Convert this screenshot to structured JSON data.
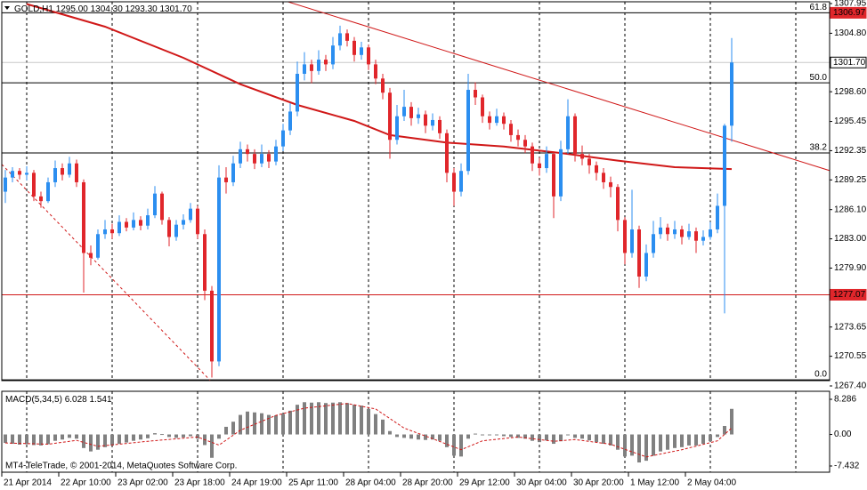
{
  "chart_data": {
    "type": "candlestick",
    "symbol": "GOLD,H1",
    "header_values": [
      "1295.00",
      "1304.30",
      "1293.30",
      "1301.70"
    ],
    "up_color": "#2b8ef0",
    "down_color": "#e0262b",
    "ylim": [
      1267.4,
      1307.95
    ],
    "yticks": [
      1307.95,
      {
        "value": 1304.8,
        "label": "1304.80"
      },
      {
        "value": 1298.6,
        "label": "1298.60"
      },
      1295.45,
      1292.35,
      1289.25,
      {
        "value": 1286.1,
        "label": "1286.10"
      },
      {
        "value": 1283,
        "label": "1283.00"
      },
      {
        "value": 1279.9,
        "label": "1279.90"
      },
      1273.65,
      1270.55,
      {
        "value": 1267.4,
        "label": "1267.40"
      }
    ],
    "xticks": [
      {
        "value": 0,
        "label": "21 Apr 2014"
      },
      {
        "value": 8,
        "label": "22 Apr 10:00"
      },
      {
        "value": 16,
        "label": "23 Apr 02:00"
      },
      {
        "value": 24,
        "label": "23 Apr 18:00"
      },
      {
        "value": 32,
        "label": "24 Apr 19:00"
      },
      {
        "value": 40,
        "label": "25 Apr 11:00"
      },
      {
        "value": 48,
        "label": "28 Apr 04:00"
      },
      {
        "value": 56,
        "label": "28 Apr 20:00"
      },
      {
        "value": 64,
        "label": "29 Apr 12:00"
      },
      {
        "value": 72,
        "label": "30 Apr 04:00"
      },
      {
        "value": 80,
        "label": "30 Apr 20:00"
      },
      {
        "value": 88,
        "label": "1 May 12:00"
      },
      {
        "value": 96,
        "label": "2 May 04:00"
      }
    ],
    "xgrid": [
      3,
      15,
      27,
      39,
      51,
      63,
      75,
      87,
      99,
      111
    ],
    "candles": [
      [
        1288.0,
        1290.3,
        1286.8,
        1289.5
      ],
      [
        1289.5,
        1290.6,
        1289.0,
        1290.2
      ],
      [
        1290.2,
        1290.5,
        1289.3,
        1289.8
      ],
      [
        1289.8,
        1290.7,
        1289.2,
        1290.0
      ],
      [
        1290.0,
        1290.3,
        1287.0,
        1287.5
      ],
      [
        1287.5,
        1288.0,
        1286.3,
        1287.0
      ],
      [
        1287.0,
        1289.5,
        1286.8,
        1289.0
      ],
      [
        1289.0,
        1291.3,
        1288.5,
        1290.5
      ],
      [
        1290.5,
        1291.0,
        1289.2,
        1289.8
      ],
      [
        1289.8,
        1291.7,
        1289.5,
        1291.0
      ],
      [
        1291.0,
        1291.4,
        1288.5,
        1289.0
      ],
      [
        1289.0,
        1289.3,
        1277.3,
        1281.5
      ],
      [
        1281.5,
        1282.3,
        1280.2,
        1281.0
      ],
      [
        1281.0,
        1284.0,
        1280.8,
        1283.5
      ],
      [
        1283.5,
        1285.0,
        1283.0,
        1284.0
      ],
      [
        1284.0,
        1284.6,
        1283.0,
        1283.6
      ],
      [
        1283.6,
        1285.5,
        1283.3,
        1284.8
      ],
      [
        1284.8,
        1285.2,
        1283.8,
        1284.2
      ],
      [
        1284.2,
        1285.8,
        1283.9,
        1285.0
      ],
      [
        1285.0,
        1285.4,
        1283.9,
        1284.4
      ],
      [
        1284.4,
        1286.2,
        1284.0,
        1285.5
      ],
      [
        1285.5,
        1288.6,
        1285.2,
        1287.8
      ],
      [
        1287.8,
        1288.0,
        1284.5,
        1285.0
      ],
      [
        1285.0,
        1285.3,
        1282.2,
        1283.2
      ],
      [
        1283.2,
        1285.0,
        1282.8,
        1284.5
      ],
      [
        1284.5,
        1285.6,
        1284.0,
        1285.0
      ],
      [
        1285.0,
        1286.8,
        1284.7,
        1286.2
      ],
      [
        1286.2,
        1286.5,
        1283.0,
        1283.5
      ],
      [
        1283.5,
        1284.0,
        1276.5,
        1277.5
      ],
      [
        1277.5,
        1278.0,
        1268.3,
        1270.0
      ],
      [
        1270.0,
        1290.8,
        1269.5,
        1289.5
      ],
      [
        1289.5,
        1290.6,
        1287.8,
        1289.0
      ],
      [
        1289.0,
        1291.8,
        1288.6,
        1291.0
      ],
      [
        1291.0,
        1293.3,
        1290.5,
        1292.5
      ],
      [
        1292.5,
        1293.0,
        1291.2,
        1292.0
      ],
      [
        1292.0,
        1292.5,
        1290.4,
        1291.0
      ],
      [
        1291.0,
        1293.0,
        1290.6,
        1292.0
      ],
      [
        1292.0,
        1292.4,
        1290.5,
        1291.2
      ],
      [
        1291.2,
        1293.5,
        1290.8,
        1292.8
      ],
      [
        1292.8,
        1295.2,
        1292.3,
        1294.5
      ],
      [
        1294.5,
        1297.4,
        1294.0,
        1296.5
      ],
      [
        1296.5,
        1301.8,
        1296.0,
        1300.5
      ],
      [
        1300.5,
        1302.8,
        1299.8,
        1301.5
      ],
      [
        1301.5,
        1302.0,
        1299.5,
        1300.8
      ],
      [
        1300.8,
        1303.0,
        1300.4,
        1302.0
      ],
      [
        1302.0,
        1302.5,
        1300.8,
        1301.5
      ],
      [
        1301.5,
        1304.4,
        1301.0,
        1303.5
      ],
      [
        1303.5,
        1305.6,
        1303.0,
        1304.8
      ],
      [
        1304.8,
        1305.2,
        1303.4,
        1304.0
      ],
      [
        1304.0,
        1304.4,
        1301.8,
        1302.5
      ],
      [
        1302.5,
        1303.9,
        1302.0,
        1303.3
      ],
      [
        1303.3,
        1303.6,
        1300.9,
        1301.5
      ],
      [
        1301.5,
        1302.0,
        1299.4,
        1300.0
      ],
      [
        1300.0,
        1300.5,
        1297.8,
        1298.5
      ],
      [
        1298.5,
        1299.0,
        1291.5,
        1293.5
      ],
      [
        1293.5,
        1297.2,
        1293.0,
        1296.0
      ],
      [
        1296.0,
        1298.8,
        1295.5,
        1297.0
      ],
      [
        1297.0,
        1297.5,
        1295.0,
        1295.8
      ],
      [
        1295.8,
        1296.9,
        1295.2,
        1296.2
      ],
      [
        1296.2,
        1296.6,
        1294.2,
        1295.0
      ],
      [
        1295.0,
        1296.3,
        1294.5,
        1295.6
      ],
      [
        1295.6,
        1296.0,
        1293.6,
        1294.2
      ],
      [
        1294.2,
        1294.6,
        1289.0,
        1290.0
      ],
      [
        1290.0,
        1290.5,
        1286.5,
        1288.0
      ],
      [
        1288.0,
        1291.0,
        1287.5,
        1290.2
      ],
      [
        1290.2,
        1300.5,
        1289.8,
        1298.8
      ],
      [
        1298.8,
        1299.6,
        1297.2,
        1298.0
      ],
      [
        1298.0,
        1298.3,
        1295.3,
        1296.0
      ],
      [
        1296.0,
        1296.5,
        1294.6,
        1295.3
      ],
      [
        1295.3,
        1296.8,
        1295.0,
        1296.0
      ],
      [
        1296.0,
        1296.4,
        1294.6,
        1295.2
      ],
      [
        1295.2,
        1295.6,
        1293.3,
        1294.0
      ],
      [
        1294.0,
        1294.6,
        1292.8,
        1293.5
      ],
      [
        1293.5,
        1294.0,
        1292.1,
        1292.8
      ],
      [
        1292.8,
        1293.2,
        1290.2,
        1291.0
      ],
      [
        1291.0,
        1291.6,
        1289.7,
        1290.5
      ],
      [
        1290.5,
        1292.8,
        1290.0,
        1292.0
      ],
      [
        1292.0,
        1292.3,
        1285.2,
        1287.5
      ],
      [
        1287.5,
        1293.4,
        1287.0,
        1292.5
      ],
      [
        1292.5,
        1297.8,
        1292.0,
        1296.0
      ],
      [
        1296.0,
        1296.3,
        1291.2,
        1292.0
      ],
      [
        1292.0,
        1292.9,
        1290.8,
        1291.5
      ],
      [
        1291.5,
        1292.0,
        1289.9,
        1290.8
      ],
      [
        1290.8,
        1291.2,
        1289.2,
        1290.0
      ],
      [
        1290.0,
        1290.5,
        1288.3,
        1289.0
      ],
      [
        1289.0,
        1289.6,
        1287.4,
        1288.5
      ],
      [
        1288.5,
        1288.8,
        1283.8,
        1285.0
      ],
      [
        1285.0,
        1285.3,
        1280.3,
        1281.5
      ],
      [
        1281.5,
        1288.2,
        1281.0,
        1284.0
      ],
      [
        1284.0,
        1284.4,
        1277.8,
        1279.0
      ],
      [
        1279.0,
        1282.4,
        1278.5,
        1281.5
      ],
      [
        1281.5,
        1284.9,
        1281.0,
        1283.5
      ],
      [
        1283.5,
        1285.3,
        1283.0,
        1284.2
      ],
      [
        1284.2,
        1284.6,
        1282.8,
        1283.5
      ],
      [
        1283.5,
        1284.9,
        1283.0,
        1284.0
      ],
      [
        1284.0,
        1284.4,
        1282.4,
        1283.2
      ],
      [
        1283.2,
        1284.6,
        1282.9,
        1283.8
      ],
      [
        1283.8,
        1284.2,
        1281.5,
        1282.8
      ],
      [
        1282.8,
        1283.9,
        1282.3,
        1283.2
      ],
      [
        1283.2,
        1284.8,
        1282.9,
        1284.0
      ],
      [
        1284.0,
        1287.8,
        1283.6,
        1286.5
      ],
      [
        1286.5,
        1295.2,
        1275.1,
        1295.0
      ],
      [
        1295.0,
        1304.3,
        1293.3,
        1301.7
      ]
    ],
    "moving_average": {
      "color": "#d01818",
      "x": [
        3,
        14,
        25,
        33,
        41,
        49,
        54,
        62,
        70,
        78,
        86,
        94,
        102
      ],
      "values": [
        1307.9,
        1305.5,
        1302.2,
        1299.4,
        1297.2,
        1295.5,
        1294.0,
        1293.2,
        1292.8,
        1292.1,
        1291.3,
        1290.6,
        1290.4
      ]
    },
    "trendlines": [
      {
        "color": "#d01818",
        "dashed": false,
        "x": [
          39,
          121
        ],
        "values": [
          1308.3,
          1289.0
        ]
      },
      {
        "color": "#d01818",
        "dashed": true,
        "x": [
          -0.5,
          28.75
        ],
        "values": [
          1290.9,
          1268.0
        ]
      }
    ],
    "levels": [
      {
        "ratio": 61.8,
        "price": 1306.97
      },
      {
        "ratio": {
          "value": 50,
          "label": "50.0"
        },
        "price": 1299.54
      },
      {
        "ratio": 38.2,
        "price": 1292.11
      },
      {
        "ratio": {
          "value": 0,
          "label": "0.0"
        },
        "price": 1268.05
      }
    ],
    "support_line": {
      "price": 1277.07,
      "color": "#d01818"
    },
    "price_tags": [
      {
        "price": 1306.97,
        "bg": "#e0262b",
        "fg": "#ffffff"
      },
      {
        "price": {
          "value": 1301.7,
          "label": "1301.70"
        },
        "bg": "#ffffff",
        "fg": "#000000"
      },
      {
        "price": 1277.07,
        "bg": "#e0262b",
        "fg": "#ffffff"
      }
    ],
    "macd": {
      "name": "MACD(5,34,5)",
      "ylim": [
        -7.432,
        8.286
      ],
      "yticks": [
        8.286,
        {
          "value": 0,
          "label": "0.00"
        },
        -7.432
      ],
      "bar_color": "#808080",
      "histogram": [
        -2.0,
        -2.2,
        -2.4,
        -2.3,
        -2.5,
        -2.6,
        -2.3,
        -1.5,
        -1.2,
        -0.8,
        -1.0,
        -3.2,
        -4.0,
        -3.6,
        -3.0,
        -2.6,
        -2.2,
        -1.9,
        -1.5,
        -1.2,
        -0.9,
        0.3,
        0.1,
        -0.6,
        -0.8,
        -0.7,
        -0.4,
        -1.0,
        -2.5,
        -5.5,
        -1.0,
        1.8,
        3.0,
        4.6,
        5.4,
        5.2,
        5.0,
        4.6,
        4.5,
        4.8,
        5.6,
        7.0,
        7.6,
        7.5,
        7.6,
        7.4,
        7.5,
        7.6,
        7.4,
        7.0,
        6.8,
        6.0,
        4.8,
        3.5,
        0.8,
        -0.6,
        -0.8,
        -1.0,
        -1.2,
        -1.3,
        -1.2,
        -1.5,
        -3.0,
        -5.0,
        -5.2,
        -1.0,
        0.2,
        0.0,
        -0.2,
        -0.2,
        -0.4,
        -0.6,
        -0.8,
        -1.0,
        -1.5,
        -1.8,
        -1.4,
        -2.2,
        -1.6,
        -0.2,
        -0.8,
        -1.0,
        -1.4,
        -1.8,
        -2.2,
        -2.6,
        -3.6,
        -5.2,
        -5.0,
        -6.6,
        -6.2,
        -5.0,
        -4.0,
        -3.6,
        -3.2,
        -3.0,
        -2.6,
        -2.6,
        -2.2,
        -1.6,
        -0.6,
        2.0,
        6.028
      ],
      "signal": {
        "color": "#d01818",
        "x": [
          0,
          6,
          10,
          13,
          20,
          27,
          30,
          33,
          38,
          42,
          48,
          52,
          56,
          60,
          64,
          67,
          72,
          77,
          80,
          85,
          90,
          95,
          100,
          102
        ],
        "values": [
          -2.0,
          -2.3,
          -1.4,
          -2.8,
          -1.6,
          -0.6,
          -2.5,
          1.0,
          4.5,
          6.2,
          7.3,
          6.0,
          1.5,
          -1.0,
          -3.6,
          -1.5,
          -0.6,
          -1.6,
          -1.2,
          -2.3,
          -5.3,
          -3.6,
          -1.5,
          1.541
        ]
      }
    },
    "copyright": "MT4-TeleTrade, © 2001-2014, MetaQuotes Software Corp."
  }
}
